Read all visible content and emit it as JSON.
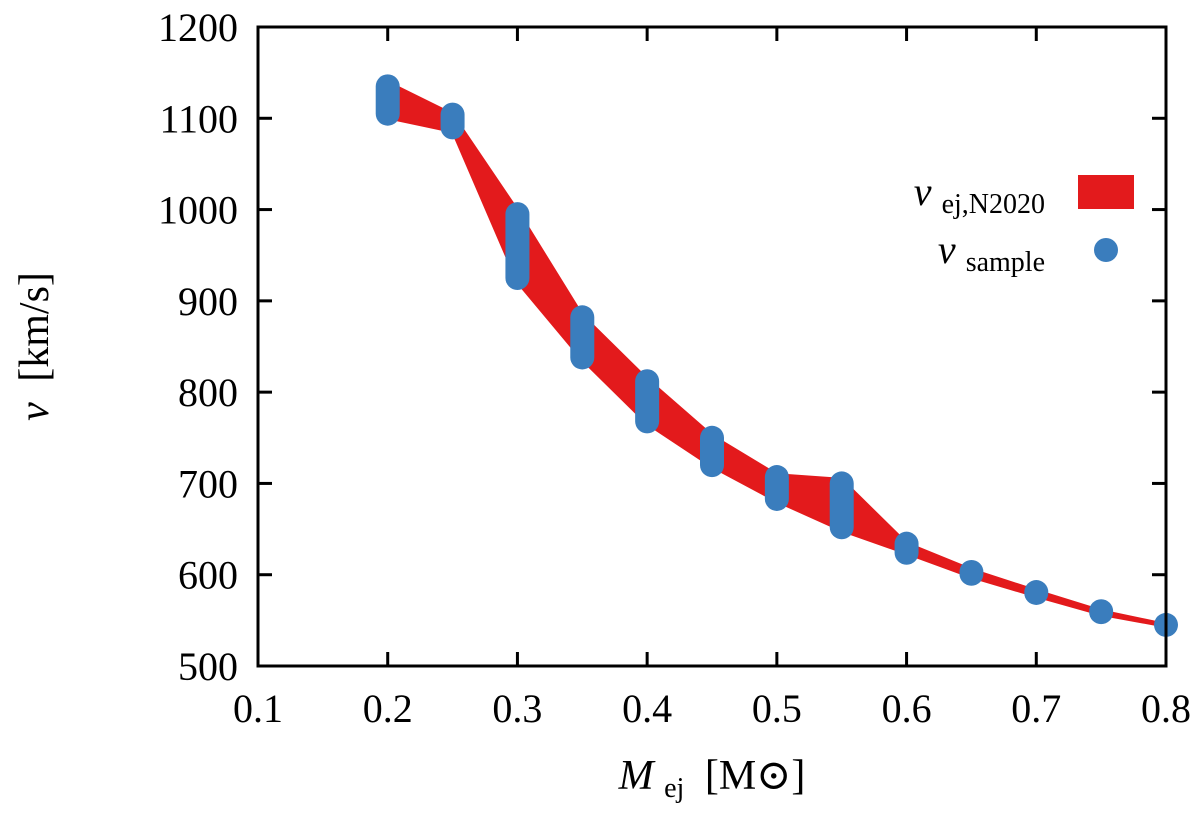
{
  "chart_data": {
    "type": "area",
    "xlabel": {
      "main": "M",
      "sub": "ej",
      "unit": "[M⊙]"
    },
    "ylabel": {
      "main": "v",
      "unit": "[km/s]"
    },
    "xlim": [
      0.1,
      0.8
    ],
    "ylim": [
      500,
      1200
    ],
    "xticks": [
      "0.1",
      "0.2",
      "0.3",
      "0.4",
      "0.5",
      "0.6",
      "0.7",
      "0.8"
    ],
    "yticks": [
      "500",
      "600",
      "700",
      "800",
      "900",
      "1000",
      "1100",
      "1200"
    ],
    "grid": false,
    "legend_position": "right",
    "series": [
      {
        "name": {
          "main": "v",
          "sub": "ej,N2020"
        },
        "type": "band",
        "color": "#e31a1c",
        "points": [
          {
            "x": 0.2,
            "low": 1100,
            "high": 1140
          },
          {
            "x": 0.25,
            "low": 1085,
            "high": 1105
          },
          {
            "x": 0.3,
            "low": 920,
            "high": 1000
          },
          {
            "x": 0.35,
            "low": 835,
            "high": 885
          },
          {
            "x": 0.4,
            "low": 765,
            "high": 815
          },
          {
            "x": 0.45,
            "low": 718,
            "high": 753
          },
          {
            "x": 0.5,
            "low": 680,
            "high": 710
          },
          {
            "x": 0.55,
            "low": 648,
            "high": 705
          },
          {
            "x": 0.6,
            "low": 623,
            "high": 635
          },
          {
            "x": 0.65,
            "low": 597,
            "high": 606
          },
          {
            "x": 0.7,
            "low": 576,
            "high": 583
          },
          {
            "x": 0.75,
            "low": 556,
            "high": 561
          },
          {
            "x": 0.8,
            "low": 543,
            "high": 546
          }
        ]
      },
      {
        "name": {
          "main": "v",
          "sub": "sample"
        },
        "type": "scatter",
        "color": "#3a7dbd",
        "points": [
          {
            "x": 0.2,
            "low": 1105,
            "high": 1135
          },
          {
            "x": 0.25,
            "low": 1090,
            "high": 1104
          },
          {
            "x": 0.3,
            "low": 925,
            "high": 995
          },
          {
            "x": 0.35,
            "low": 838,
            "high": 882
          },
          {
            "x": 0.4,
            "low": 768,
            "high": 812
          },
          {
            "x": 0.45,
            "low": 720,
            "high": 750
          },
          {
            "x": 0.5,
            "low": 683,
            "high": 707
          },
          {
            "x": 0.55,
            "low": 652,
            "high": 700
          },
          {
            "x": 0.6,
            "low": 624,
            "high": 634
          },
          {
            "x": 0.65,
            "low": 601,
            "high": 603
          },
          {
            "x": 0.7,
            "low": 580,
            "high": 581
          },
          {
            "x": 0.75,
            "low": 559,
            "high": 560
          },
          {
            "x": 0.8,
            "low": 545,
            "high": 545
          }
        ]
      }
    ]
  }
}
